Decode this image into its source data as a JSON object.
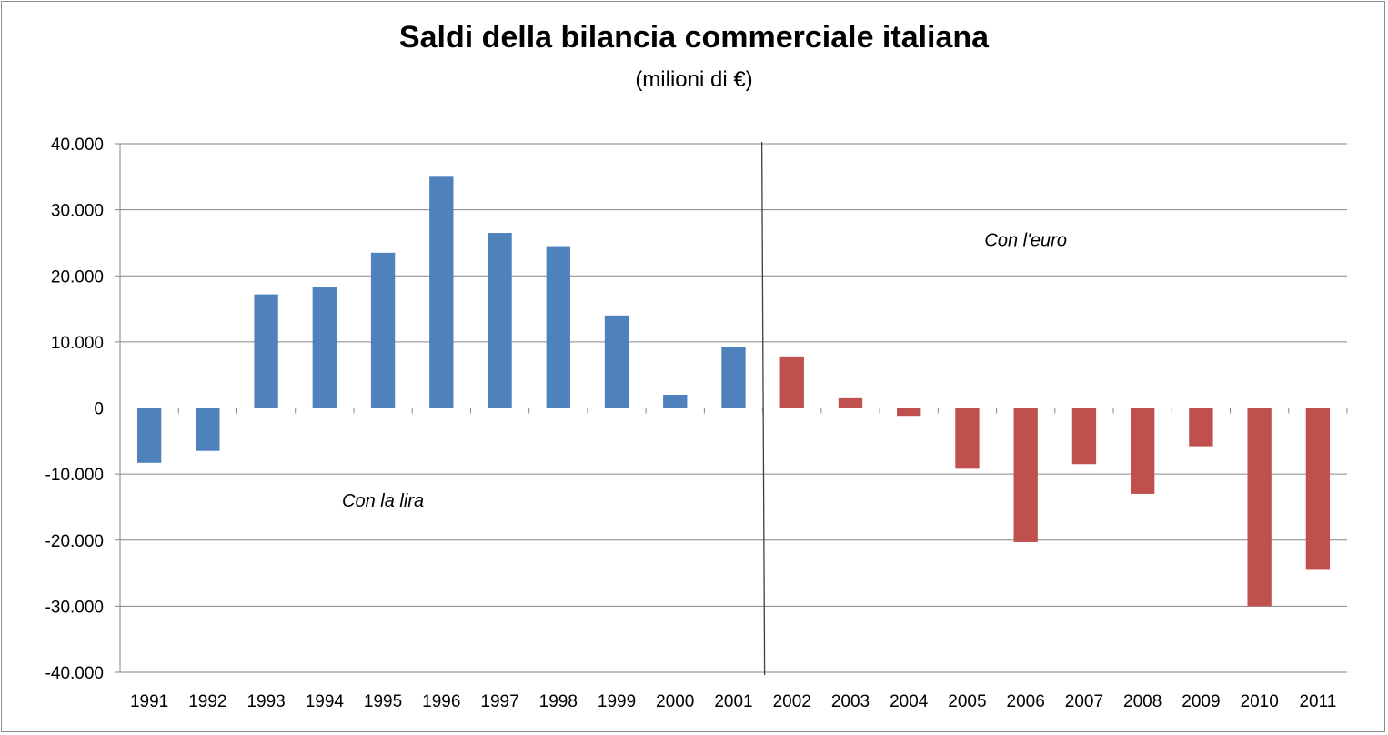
{
  "chart_data": {
    "type": "bar",
    "title": "Saldi della bilancia commerciale italiana",
    "subtitle": "(milioni di €)",
    "xlabel": "",
    "ylabel": "",
    "ylim": [
      -40000,
      40000
    ],
    "yticks": [
      40000,
      30000,
      20000,
      10000,
      0,
      -10000,
      -20000,
      -30000,
      -40000
    ],
    "ytick_labels": [
      "40.000",
      "30.000",
      "20.000",
      "10.000",
      "0",
      "-10.000",
      "-20.000",
      "-30.000",
      "-40.000"
    ],
    "categories": [
      "1991",
      "1992",
      "1993",
      "1994",
      "1995",
      "1996",
      "1997",
      "1998",
      "1999",
      "2000",
      "2001",
      "2002",
      "2003",
      "2004",
      "2005",
      "2006",
      "2007",
      "2008",
      "2009",
      "2010",
      "2011"
    ],
    "values": [
      -8300,
      -6500,
      17200,
      18300,
      23500,
      35000,
      26500,
      24500,
      14000,
      2000,
      9200,
      7800,
      1600,
      -1200,
      -9200,
      -20300,
      -8500,
      -13000,
      -5800,
      -30000,
      -24500
    ],
    "colors": [
      "#4f81bd",
      "#4f81bd",
      "#4f81bd",
      "#4f81bd",
      "#4f81bd",
      "#4f81bd",
      "#4f81bd",
      "#4f81bd",
      "#4f81bd",
      "#4f81bd",
      "#4f81bd",
      "#c0504d",
      "#c0504d",
      "#c0504d",
      "#c0504d",
      "#c0504d",
      "#c0504d",
      "#c0504d",
      "#c0504d",
      "#c0504d",
      "#c0504d"
    ],
    "grid": true,
    "annotations": [
      {
        "text": "Con la lira",
        "x": "1995",
        "y": -14000
      },
      {
        "text": "Con l'euro",
        "x": "2006",
        "y": 25500
      }
    ],
    "separator_between": [
      "2001",
      "2002"
    ]
  }
}
